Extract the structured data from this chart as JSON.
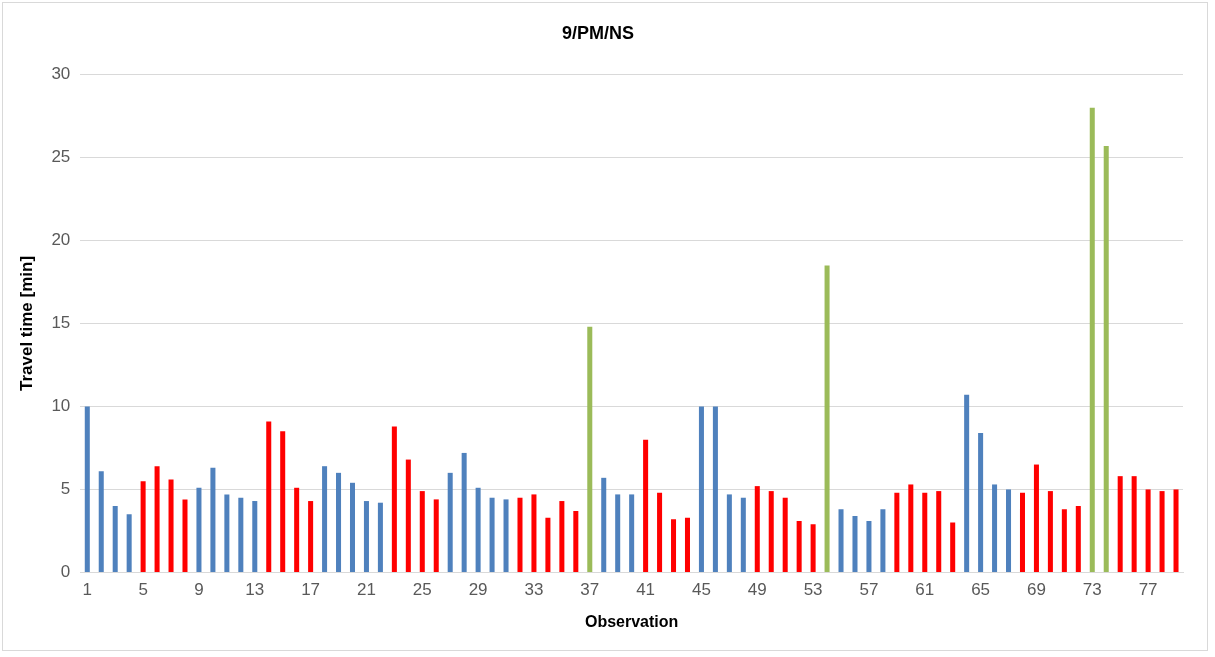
{
  "chart_data": {
    "type": "bar",
    "title": "9/PM/NS",
    "xlabel": "Observation",
    "ylabel": "Travel time [min]",
    "categories": [
      "1",
      null,
      null,
      null,
      "5",
      null,
      null,
      null,
      "9",
      null,
      null,
      null,
      "13",
      null,
      null,
      null,
      "17",
      null,
      null,
      null,
      "21",
      null,
      null,
      null,
      "25",
      null,
      null,
      null,
      "29",
      null,
      null,
      null,
      "33",
      null,
      null,
      null,
      "37",
      null,
      null,
      null,
      "41",
      null,
      null,
      null,
      "45",
      null,
      null,
      null,
      "49",
      null,
      null,
      null,
      "53",
      null,
      null,
      null,
      "57",
      null,
      null,
      null,
      "61",
      null,
      null,
      null,
      "65",
      null,
      null,
      null,
      "69",
      null,
      null,
      null,
      "73",
      null,
      null,
      null,
      "77",
      null,
      null
    ],
    "values": [
      10.0,
      6.1,
      4.0,
      3.5,
      5.5,
      6.4,
      5.6,
      4.4,
      5.1,
      6.3,
      4.7,
      4.5,
      4.3,
      9.1,
      8.5,
      5.1,
      4.3,
      6.4,
      6.0,
      5.4,
      4.3,
      4.2,
      8.8,
      6.8,
      4.9,
      4.4,
      6.0,
      7.2,
      5.1,
      4.5,
      4.4,
      4.5,
      4.7,
      3.3,
      4.3,
      3.7,
      14.8,
      5.7,
      4.7,
      4.7,
      8.0,
      4.8,
      3.2,
      3.3,
      10.0,
      10.0,
      4.7,
      4.5,
      5.2,
      4.9,
      4.5,
      3.1,
      2.9,
      18.5,
      3.8,
      3.4,
      3.1,
      3.8,
      4.8,
      5.3,
      4.8,
      4.9,
      3.0,
      10.7,
      8.4,
      5.3,
      5.0,
      4.8,
      6.5,
      4.9,
      3.8,
      4.0,
      28.0,
      25.7,
      5.8,
      5.8,
      5.0,
      4.9,
      5.0
    ],
    "colors": [
      "#4f81bd",
      "#4f81bd",
      "#4f81bd",
      "#4f81bd",
      "#ff0000",
      "#ff0000",
      "#ff0000",
      "#ff0000",
      "#4f81bd",
      "#4f81bd",
      "#4f81bd",
      "#4f81bd",
      "#4f81bd",
      "#ff0000",
      "#ff0000",
      "#ff0000",
      "#ff0000",
      "#4f81bd",
      "#4f81bd",
      "#4f81bd",
      "#4f81bd",
      "#4f81bd",
      "#ff0000",
      "#ff0000",
      "#ff0000",
      "#ff0000",
      "#4f81bd",
      "#4f81bd",
      "#4f81bd",
      "#4f81bd",
      "#4f81bd",
      "#ff0000",
      "#ff0000",
      "#ff0000",
      "#ff0000",
      "#ff0000",
      "#9bbb59",
      "#4f81bd",
      "#4f81bd",
      "#4f81bd",
      "#ff0000",
      "#ff0000",
      "#ff0000",
      "#ff0000",
      "#4f81bd",
      "#4f81bd",
      "#4f81bd",
      "#4f81bd",
      "#ff0000",
      "#ff0000",
      "#ff0000",
      "#ff0000",
      "#ff0000",
      "#9bbb59",
      "#4f81bd",
      "#4f81bd",
      "#4f81bd",
      "#4f81bd",
      "#ff0000",
      "#ff0000",
      "#ff0000",
      "#ff0000",
      "#ff0000",
      "#4f81bd",
      "#4f81bd",
      "#4f81bd",
      "#4f81bd",
      "#ff0000",
      "#ff0000",
      "#ff0000",
      "#ff0000",
      "#ff0000",
      "#9bbb59",
      "#9bbb59",
      "#ff0000",
      "#ff0000",
      "#ff0000",
      "#ff0000",
      "#ff0000"
    ],
    "ylim": [
      0,
      30
    ],
    "yticks": [
      0,
      5,
      10,
      15,
      20,
      25,
      30
    ],
    "grid": "y",
    "legend": false
  }
}
